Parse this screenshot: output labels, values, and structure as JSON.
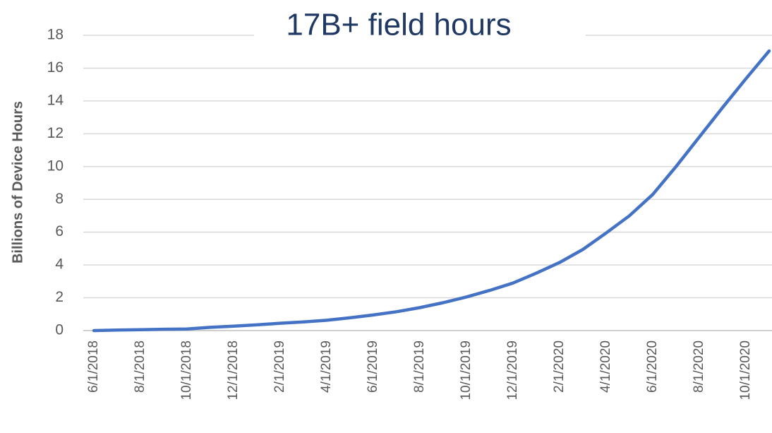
{
  "chart_data": {
    "type": "line",
    "title": "17B+ field hours",
    "y_label": "Billions of Device Hours",
    "categories": [
      "6/1/2018",
      null,
      "8/1/2018",
      null,
      "10/1/2018",
      null,
      "12/1/2018",
      null,
      "2/1/2019",
      null,
      "4/1/2019",
      null,
      "6/1/2019",
      null,
      "8/1/2019",
      null,
      "10/1/2019",
      null,
      "12/1/2019",
      null,
      "2/1/2020",
      null,
      "4/1/2020",
      null,
      "6/1/2020",
      null,
      "8/1/2020",
      null,
      "10/1/2020",
      null
    ],
    "series": [
      {
        "name": "Billions of Device Hours",
        "color": "#4472c4",
        "values": [
          0,
          0.03,
          0.05,
          0.08,
          0.1,
          0.2,
          0.27,
          0.35,
          0.45,
          0.53,
          0.63,
          0.78,
          0.95,
          1.15,
          1.4,
          1.7,
          2.05,
          2.45,
          2.9,
          3.5,
          4.15,
          4.95,
          5.95,
          7.0,
          8.3,
          10.0,
          11.8,
          13.6,
          15.35,
          17.05
        ]
      }
    ],
    "ylim": [
      0,
      18
    ],
    "yticks": [
      0,
      2,
      4,
      6,
      8,
      10,
      12,
      14,
      16,
      18
    ],
    "grid": true
  }
}
